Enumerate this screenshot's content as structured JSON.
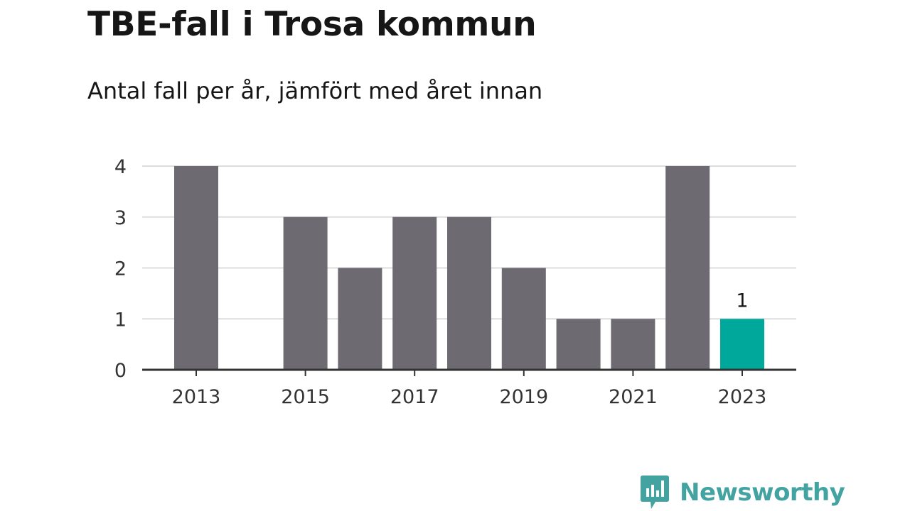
{
  "title": "TBE-fall i Trosa kommun",
  "subtitle": "Antal fall per år, jämfört med året innan",
  "brand": {
    "name": "Newsworthy",
    "color": "#43a3a0",
    "icon": "bar-chart-speech-bubble-icon"
  },
  "colors": {
    "bar": "#6d6b71",
    "highlight": "#00a79b",
    "grid": "#dddddd",
    "axis": "#333333"
  },
  "chart_data": {
    "type": "bar",
    "categories": [
      "2013",
      "2014",
      "2015",
      "2016",
      "2017",
      "2018",
      "2019",
      "2020",
      "2021",
      "2022",
      "2023"
    ],
    "values": [
      4,
      0,
      3,
      2,
      3,
      3,
      2,
      1,
      1,
      4,
      1
    ],
    "x_tick_labels": [
      "2013",
      "2015",
      "2017",
      "2019",
      "2021",
      "2023"
    ],
    "y_ticks": [
      0,
      1,
      2,
      3,
      4
    ],
    "ylim": [
      0,
      4
    ],
    "grid": true,
    "highlight_index": 10,
    "data_labels": [
      {
        "category": "2023",
        "text": "1"
      }
    ]
  }
}
